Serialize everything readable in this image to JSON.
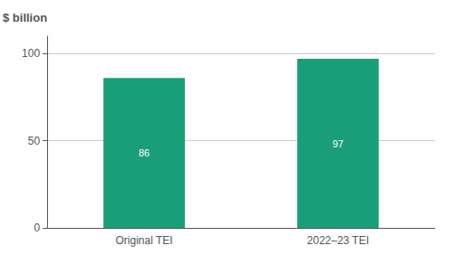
{
  "chart_data": {
    "type": "bar",
    "ylabel": "$ billion",
    "categories": [
      "Original TEI",
      "2022–23 TEI"
    ],
    "values": [
      86,
      97
    ],
    "color": "#1a9e7a",
    "ylim": [
      0,
      110
    ],
    "yticks": [
      0,
      50,
      100
    ],
    "grid": true,
    "data_labels": true
  }
}
